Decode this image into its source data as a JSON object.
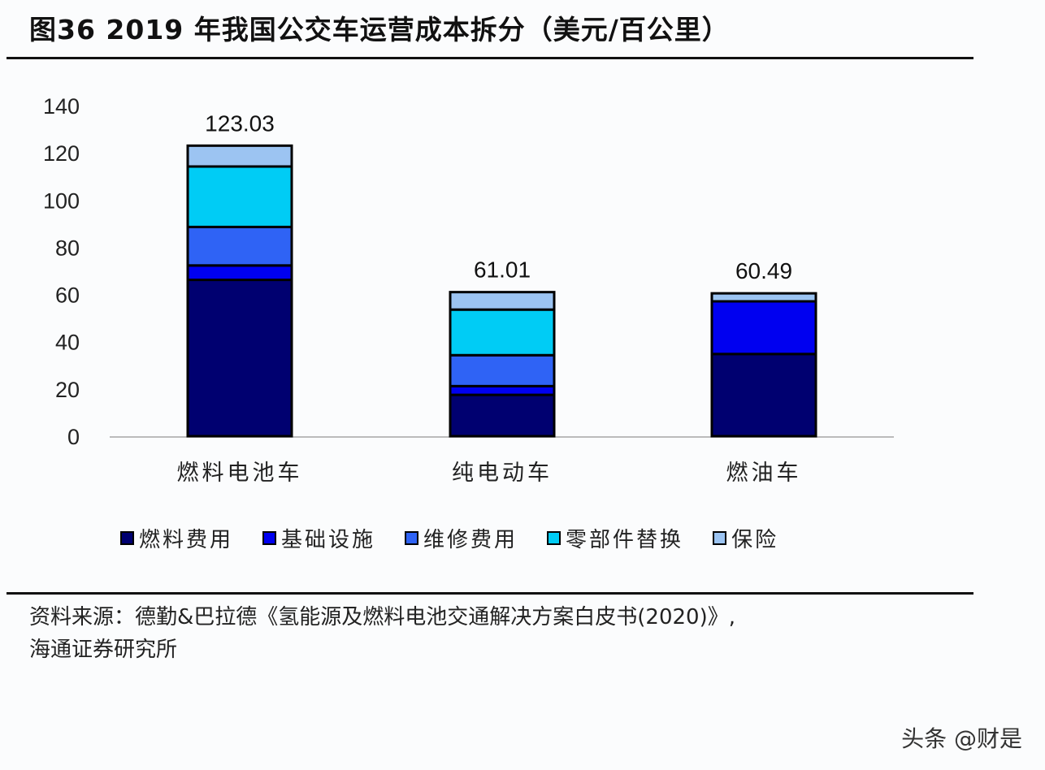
{
  "title": "图36 2019 年我国公交车运营成本拆分（美元/百公里）",
  "chart_data": {
    "type": "bar",
    "stacked": true,
    "title": "图36 2019 年我国公交车运营成本拆分（美元/百公里）",
    "xlabel": "",
    "ylabel": "",
    "ylim": [
      0,
      140
    ],
    "yticks": [
      0,
      20,
      40,
      60,
      80,
      100,
      120,
      140
    ],
    "categories": [
      "燃料电池车",
      "纯电动车",
      "燃油车"
    ],
    "totals": [
      "123.03",
      "61.01",
      "60.49"
    ],
    "series": [
      {
        "name": "燃料费用",
        "color": "#000070",
        "values": [
          66.2,
          17.5,
          34.8
        ]
      },
      {
        "name": "基础设施",
        "color": "#0000f0",
        "values": [
          6.1,
          3.7,
          22.3
        ]
      },
      {
        "name": "维修费用",
        "color": "#2f63f5",
        "values": [
          16.3,
          13.1,
          0
        ]
      },
      {
        "name": "零部件替换",
        "color": "#00ccf5",
        "values": [
          25.6,
          19.3,
          0
        ]
      },
      {
        "name": "保险",
        "color": "#9cc4f2",
        "values": [
          8.83,
          7.41,
          3.39
        ]
      }
    ],
    "grid": false,
    "legend": "bottom"
  },
  "source": {
    "line1": "资料来源：德勤&巴拉德《氢能源及燃料电池交通解决方案白皮书(2020)》,",
    "line2": "海通证券研究所"
  },
  "watermark": "头条 @财是"
}
